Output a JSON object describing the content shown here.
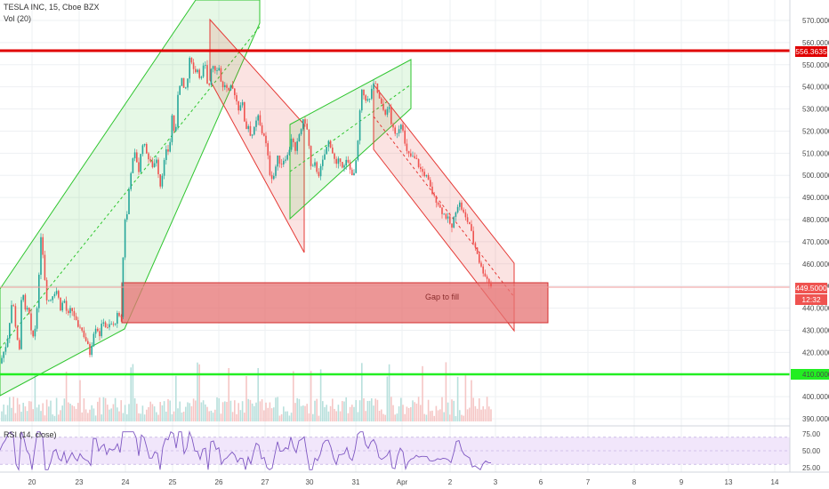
{
  "header": {
    "title": "TESLA INC, 15, Cboe BZX",
    "volume_label": "Vol (20)"
  },
  "rsi": {
    "label": "RSI (14, close)"
  },
  "annotation": {
    "gap_text": "Gap to fill"
  },
  "price_tags": {
    "resistance": "556.3635",
    "last": "449.5000",
    "timer": "12:32"
  },
  "colors": {
    "up": "#26a69a",
    "down": "#ef5350",
    "resistance_line": "#e00000",
    "support_line": "#22ee22",
    "channel_up": "#2ec52e",
    "channel_down": "#e53935",
    "gap_zone": "#e57373",
    "rsi_line": "#7e57c2",
    "rsi_band": "#f1e6fb"
  },
  "chart_data": {
    "type": "candlestick",
    "title": "TESLA INC, 15, Cboe BZX",
    "y_ticks": [
      390,
      400,
      410,
      420,
      430,
      440,
      450,
      460,
      470,
      480,
      490,
      500,
      510,
      520,
      530,
      540,
      550,
      560,
      570
    ],
    "y_tick_labels": [
      "390.0000",
      "400.0000",
      "410.0000",
      "420.0000",
      "430.0000",
      "440.0000",
      "450.0000",
      "460.0000",
      "470.0000",
      "480.0000",
      "490.0000",
      "500.0000",
      "510.0000",
      "520.0000",
      "530.0000",
      "540.0000",
      "550.0000",
      "560.0000",
      "570.0000"
    ],
    "x_tick_labels": [
      "20",
      "23",
      "24",
      "25",
      "26",
      "27",
      "30",
      "31",
      "Apr",
      "2",
      "3",
      "6",
      "7",
      "8",
      "9",
      "13",
      "14"
    ],
    "price_path": [
      [
        0,
        415
      ],
      [
        4,
        420
      ],
      [
        8,
        425
      ],
      [
        12,
        438
      ],
      [
        14,
        445
      ],
      [
        18,
        430
      ],
      [
        22,
        420
      ],
      [
        24,
        443
      ],
      [
        26,
        448
      ],
      [
        28,
        438
      ],
      [
        32,
        440
      ],
      [
        36,
        425
      ],
      [
        40,
        432
      ],
      [
        44,
        455
      ],
      [
        46,
        473
      ],
      [
        48,
        466
      ],
      [
        52,
        445
      ],
      [
        56,
        443
      ],
      [
        60,
        447
      ],
      [
        64,
        448
      ],
      [
        68,
        440
      ],
      [
        72,
        444
      ],
      [
        76,
        436
      ],
      [
        80,
        440
      ],
      [
        84,
        436
      ],
      [
        88,
        430
      ],
      [
        90,
        432
      ],
      [
        94,
        428
      ],
      [
        98,
        424
      ],
      [
        102,
        418
      ],
      [
        104,
        428
      ],
      [
        108,
        432
      ],
      [
        112,
        428
      ],
      [
        116,
        435
      ],
      [
        120,
        430
      ],
      [
        124,
        433
      ],
      [
        128,
        432
      ],
      [
        132,
        437
      ],
      [
        136,
        434
      ],
      [
        140,
        482
      ],
      [
        142,
        477
      ],
      [
        144,
        490
      ],
      [
        148,
        505
      ],
      [
        152,
        510
      ],
      [
        156,
        502
      ],
      [
        160,
        515
      ],
      [
        164,
        512
      ],
      [
        168,
        506
      ],
      [
        172,
        504
      ],
      [
        176,
        508
      ],
      [
        180,
        495
      ],
      [
        184,
        505
      ],
      [
        188,
        513
      ],
      [
        190,
        509
      ],
      [
        194,
        530
      ],
      [
        196,
        518
      ],
      [
        198,
        521
      ],
      [
        200,
        537
      ],
      [
        204,
        545
      ],
      [
        206,
        538
      ],
      [
        210,
        540
      ],
      [
        214,
        555
      ],
      [
        218,
        547
      ],
      [
        222,
        548
      ],
      [
        226,
        543
      ],
      [
        230,
        552
      ],
      [
        234,
        537
      ],
      [
        238,
        551
      ],
      [
        242,
        548
      ],
      [
        246,
        549
      ],
      [
        250,
        539
      ],
      [
        254,
        542
      ],
      [
        256,
        536
      ],
      [
        260,
        540
      ],
      [
        264,
        537
      ],
      [
        268,
        530
      ],
      [
        272,
        534
      ],
      [
        276,
        521
      ],
      [
        280,
        523
      ],
      [
        282,
        517
      ],
      [
        286,
        521
      ],
      [
        290,
        527
      ],
      [
        294,
        519
      ],
      [
        296,
        520
      ],
      [
        300,
        512
      ],
      [
        304,
        499
      ],
      [
        308,
        500
      ],
      [
        312,
        508
      ],
      [
        316,
        505
      ],
      [
        320,
        508
      ],
      [
        324,
        509
      ],
      [
        328,
        518
      ],
      [
        332,
        510
      ],
      [
        336,
        518
      ],
      [
        340,
        523
      ],
      [
        342,
        526
      ],
      [
        346,
        519
      ],
      [
        350,
        502
      ],
      [
        354,
        505
      ],
      [
        358,
        500
      ],
      [
        362,
        505
      ],
      [
        366,
        511
      ],
      [
        370,
        516
      ],
      [
        374,
        510
      ],
      [
        378,
        504
      ],
      [
        382,
        508
      ],
      [
        386,
        503
      ],
      [
        390,
        507
      ],
      [
        394,
        502
      ],
      [
        398,
        500
      ],
      [
        402,
        512
      ],
      [
        406,
        538
      ],
      [
        408,
        537
      ],
      [
        412,
        534
      ],
      [
        416,
        534
      ],
      [
        418,
        540
      ],
      [
        422,
        541
      ],
      [
        426,
        535
      ],
      [
        430,
        530
      ],
      [
        434,
        528
      ],
      [
        438,
        531
      ],
      [
        440,
        523
      ],
      [
        444,
        518
      ],
      [
        448,
        521
      ],
      [
        452,
        525
      ],
      [
        456,
        511
      ],
      [
        460,
        509
      ],
      [
        464,
        508
      ],
      [
        468,
        507
      ],
      [
        472,
        503
      ],
      [
        476,
        501
      ],
      [
        480,
        499
      ],
      [
        484,
        494
      ],
      [
        488,
        490
      ],
      [
        492,
        488
      ],
      [
        496,
        484
      ],
      [
        500,
        482
      ],
      [
        504,
        480
      ],
      [
        508,
        476
      ],
      [
        512,
        484
      ],
      [
        516,
        488
      ],
      [
        520,
        484
      ],
      [
        524,
        480
      ],
      [
        528,
        478
      ],
      [
        532,
        470
      ],
      [
        536,
        466
      ],
      [
        540,
        459
      ],
      [
        544,
        456
      ],
      [
        548,
        453
      ],
      [
        552,
        449.5
      ]
    ]
  }
}
